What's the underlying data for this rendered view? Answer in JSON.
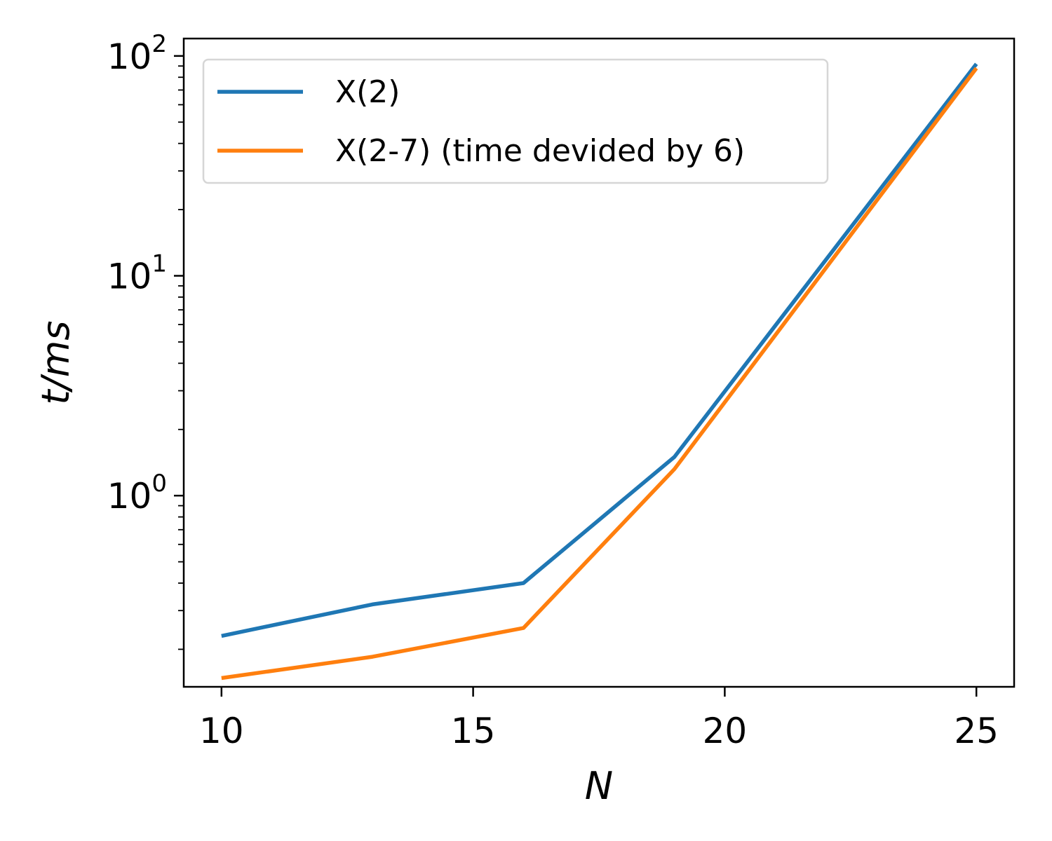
{
  "chart_data": {
    "type": "line",
    "xlabel": "N",
    "ylabel": "t/ms",
    "yscale": "log",
    "xlim": [
      9.25,
      25.75
    ],
    "ylim": [
      0.135,
      120
    ],
    "xticks": [
      10,
      15,
      20,
      25
    ],
    "xtick_labels": [
      "10",
      "15",
      "20",
      "25"
    ],
    "yticks": [
      1,
      10,
      100
    ],
    "ytick_labels": [
      {
        "base": "10",
        "exp": "0"
      },
      {
        "base": "10",
        "exp": "1"
      },
      {
        "base": "10",
        "exp": "2"
      }
    ],
    "grid": false,
    "legend": "top-left",
    "series": [
      {
        "name": "X(2)",
        "color": "#1f77b4",
        "x": [
          10,
          13,
          16,
          19,
          25
        ],
        "y": [
          0.23,
          0.32,
          0.4,
          1.5,
          92
        ]
      },
      {
        "name": "X(2-7) (time devided by 6)",
        "color": "#ff7f0e",
        "x": [
          10,
          13,
          16,
          19,
          25
        ],
        "y": [
          0.148,
          0.185,
          0.25,
          1.32,
          88
        ]
      }
    ]
  }
}
